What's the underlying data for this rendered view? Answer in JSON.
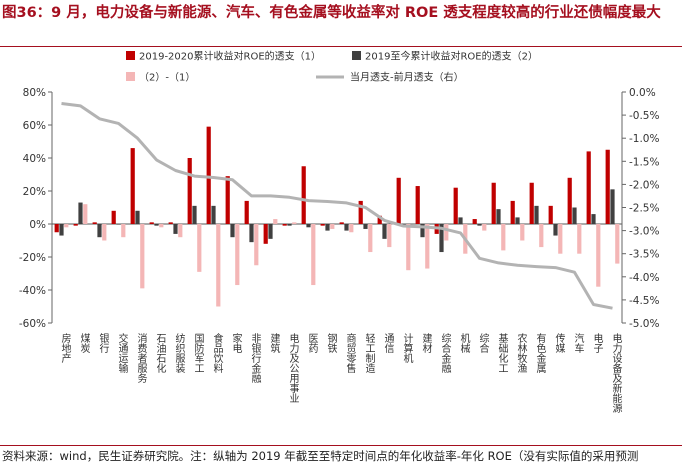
{
  "title": "图36：9 月，电力设备与新能源、汽车、有色金属等收益率对 ROE 透支程度较高的行业还债幅度最大",
  "source": "资料来源：wind，民生证券研究院。注：纵轴为 2019 年截至至特定时间点的年化收益率-年化 ROE（没有实际值的采用预测",
  "colors": {
    "series1": "#c00000",
    "series2": "#404040",
    "series3": "#f4b6b6",
    "line": "#b3b3b3",
    "title": "#a50f1f"
  },
  "chart_data": {
    "type": "bar",
    "categories": [
      "房地产",
      "煤炭",
      "银行",
      "交通运输",
      "消费者服务",
      "石油石化",
      "纺织服装",
      "国防军工",
      "食品饮料",
      "家电",
      "非银行金融",
      "建筑",
      "电力及公用事业",
      "医药",
      "钢铁",
      "商贸零售",
      "轻工制造",
      "通信",
      "计算机",
      "建材",
      "综合金融",
      "机械",
      "综合",
      "基础化工",
      "农林牧渔",
      "有色金属",
      "传媒",
      "汽车",
      "电子",
      "电力设备及新能源"
    ],
    "series": [
      {
        "name": "2019-2020累计收益对ROE的透支（1）",
        "axis": "left",
        "values": [
          -5,
          -1,
          1,
          8,
          46,
          1,
          1,
          40,
          59,
          29,
          14,
          -12,
          -1,
          35,
          -1,
          1,
          14,
          5,
          28,
          23,
          -6,
          22,
          3,
          25,
          14,
          25,
          11,
          28,
          44,
          45
        ]
      },
      {
        "name": "2019至今累计收益对ROE的透支（2）",
        "axis": "left",
        "values": [
          -7,
          13,
          -8,
          0,
          8,
          -1,
          -6,
          11,
          11,
          -8,
          -11,
          -9,
          -1,
          -2,
          -4,
          -4,
          -3,
          -9,
          0,
          -8,
          -17,
          4,
          -1,
          9,
          4,
          11,
          -7,
          10,
          6,
          21
        ]
      },
      {
        "name": "（2）-（1）",
        "axis": "left",
        "values": [
          -2,
          12,
          -10,
          -8,
          -39,
          -2,
          -8,
          -29,
          -50,
          -37,
          -25,
          3,
          1,
          -37,
          -3,
          -5,
          -17,
          -14,
          -28,
          -27,
          -10,
          -18,
          -4,
          -16,
          -10,
          -14,
          -18,
          -18,
          -38,
          -24
        ]
      },
      {
        "name": "当月透支-前月透支（右）",
        "axis": "right",
        "type": "line",
        "values": [
          -0.25,
          -0.3,
          -0.58,
          -0.68,
          -1.0,
          -1.47,
          -1.7,
          -1.82,
          -1.85,
          -1.9,
          -2.25,
          -2.25,
          -2.28,
          -2.35,
          -2.37,
          -2.4,
          -2.5,
          -2.78,
          -2.9,
          -2.92,
          -2.95,
          -3.05,
          -3.6,
          -3.7,
          -3.75,
          -3.78,
          -3.8,
          -3.9,
          -4.6,
          -4.68
        ]
      }
    ],
    "left_axis": {
      "min": -60,
      "max": 80,
      "ticks": [
        80,
        60,
        40,
        20,
        0,
        -20,
        -40,
        -60
      ],
      "tick_labels": [
        "80%",
        "60%",
        "40%",
        "20%",
        "0%",
        "-20%",
        "-40%",
        "-60%"
      ]
    },
    "right_axis": {
      "min": -5.0,
      "max": 0.0,
      "ticks": [
        0,
        -0.5,
        -1,
        -1.5,
        -2,
        -2.5,
        -3,
        -3.5,
        -4,
        -4.5,
        -5
      ],
      "tick_labels": [
        "0.0%",
        "-0.5%",
        "-1.0%",
        "-1.5%",
        "-2.0%",
        "-2.5%",
        "-3.0%",
        "-3.5%",
        "-4.0%",
        "-4.5%",
        "-5.0%"
      ]
    },
    "grid": false,
    "legend_position": "top"
  }
}
